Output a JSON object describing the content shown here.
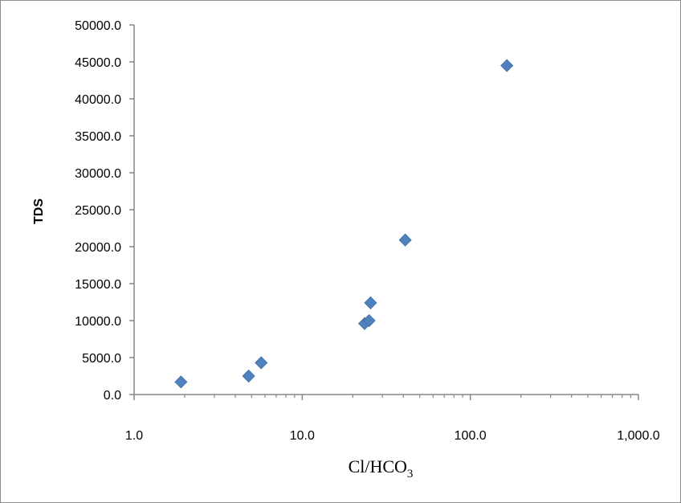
{
  "chart_data": {
    "type": "scatter",
    "xlabel": "Cl/HCO",
    "xlabel_subscript": "3",
    "ylabel": "TDS",
    "x_scale": "log",
    "xlim": [
      1,
      1000
    ],
    "ylim": [
      0,
      50000
    ],
    "x_tick_values": [
      1,
      10,
      100,
      1000
    ],
    "x_tick_labels": [
      "1.0",
      "10.0",
      "100.0",
      "1,000.0"
    ],
    "y_tick_values": [
      0,
      5000,
      10000,
      15000,
      20000,
      25000,
      30000,
      35000,
      40000,
      45000,
      50000
    ],
    "y_tick_labels": [
      "0.0",
      "5000.0",
      "10000.0",
      "15000.0",
      "20000.0",
      "25000.0",
      "30000.0",
      "35000.0",
      "40000.0",
      "45000.0",
      "50000.0"
    ],
    "grid": false,
    "marker": "diamond",
    "marker_color": "#4f81bd",
    "points": [
      {
        "x": 1.9,
        "y": 1700
      },
      {
        "x": 4.8,
        "y": 2500
      },
      {
        "x": 5.7,
        "y": 4300
      },
      {
        "x": 23.5,
        "y": 9600
      },
      {
        "x": 25.0,
        "y": 10000
      },
      {
        "x": 25.5,
        "y": 12400
      },
      {
        "x": 41.0,
        "y": 20900
      },
      {
        "x": 165.0,
        "y": 44500
      }
    ]
  }
}
